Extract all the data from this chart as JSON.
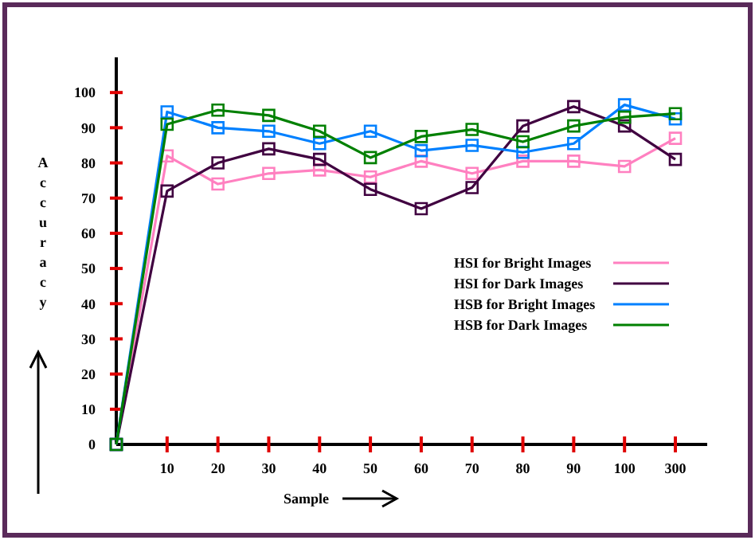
{
  "chart_data": {
    "type": "line",
    "xlabel": "Sample",
    "ylabel": "Accuracy",
    "categories": [
      null,
      "10",
      "20",
      "30",
      "40",
      "50",
      "60",
      "70",
      "80",
      "90",
      "100",
      "300"
    ],
    "series": [
      {
        "name": "HSI for Bright Images",
        "color": "#ff80c0",
        "values": [
          0,
          82,
          74,
          77,
          78,
          76,
          80.5,
          77,
          80.5,
          80.5,
          79,
          87
        ]
      },
      {
        "name": "HSI for Dark Images",
        "color": "#400040",
        "values": [
          0,
          72,
          80,
          84,
          81,
          72.5,
          67,
          73,
          90.5,
          96,
          90.5,
          81
        ]
      },
      {
        "name": "HSB for Bright Images",
        "color": "#0080ff",
        "values": [
          0,
          94.5,
          90,
          89,
          85.5,
          89,
          83.5,
          85,
          83,
          85.5,
          96.5,
          92.5
        ]
      },
      {
        "name": "HSB for Dark Images",
        "color": "#008000",
        "values": [
          0,
          91,
          95,
          93.5,
          89,
          81.5,
          87.5,
          89.5,
          86,
          90.5,
          93,
          94
        ]
      }
    ],
    "ylim": [
      0,
      110
    ],
    "yticks": [
      0,
      10,
      20,
      30,
      40,
      50,
      60,
      70,
      80,
      90,
      100
    ],
    "grid": false,
    "legend": "right",
    "marker": "square",
    "line_style": "solid"
  }
}
